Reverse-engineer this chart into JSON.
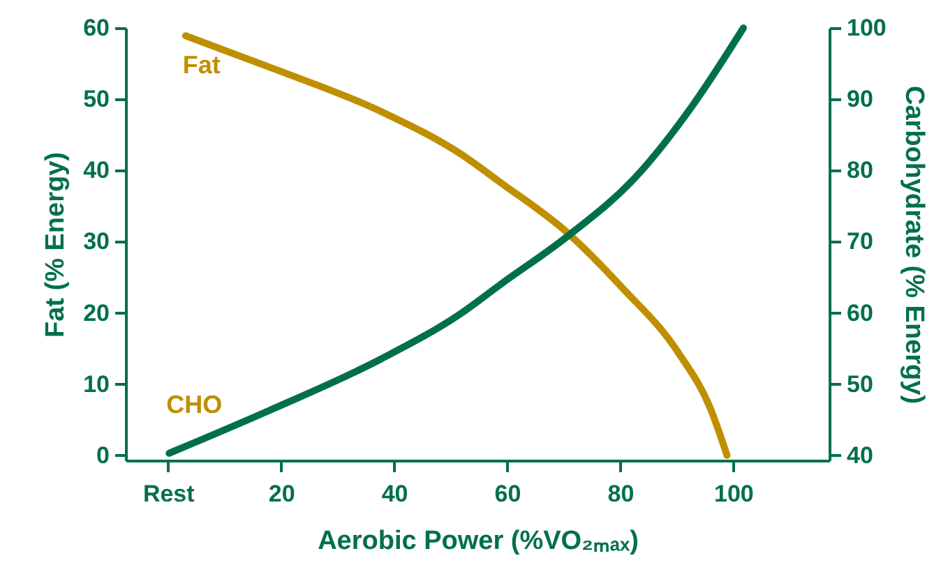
{
  "chart_data": {
    "type": "line",
    "xlabel": "Aerobic Power (%VO₂ₘₐₓ)",
    "ylabel": "Fat (% Energy)",
    "y2label": "Carbohydrate (% Energy)",
    "xlim": [
      -7.5,
      117
    ],
    "xticks": [
      {
        "value": 0,
        "label": "Rest"
      },
      20,
      40,
      60,
      80,
      100
    ],
    "ylim": [
      -0.7,
      60
    ],
    "yticks": [
      0,
      10,
      20,
      30,
      40,
      50,
      60
    ],
    "y2lim": [
      39.3,
      100
    ],
    "y2ticks": [
      40,
      50,
      60,
      70,
      80,
      90,
      100
    ],
    "grid": false,
    "marker": "none",
    "line_style": "solid",
    "series": [
      {
        "name": "Fat",
        "color": "#bf8f00",
        "x": [
          3.1,
          17.9,
          37.6,
          51.6,
          59,
          70.6,
          80.4,
          90.3,
          96,
          98.9
        ],
        "values": [
          58.9,
          54.5,
          48.3,
          42.4,
          38.2,
          31.3,
          23.5,
          14.4,
          6.5,
          0
        ]
      },
      {
        "name": "CHO",
        "color": "#00704a",
        "axis": "y2",
        "x": [
          0.2,
          17.9,
          37.6,
          51.6,
          59,
          70.6,
          82.9,
          92.8,
          101.8
        ],
        "values": [
          40.3,
          46.3,
          53.5,
          59.8,
          64.1,
          70.7,
          79.2,
          89.1,
          100
        ]
      }
    ]
  }
}
